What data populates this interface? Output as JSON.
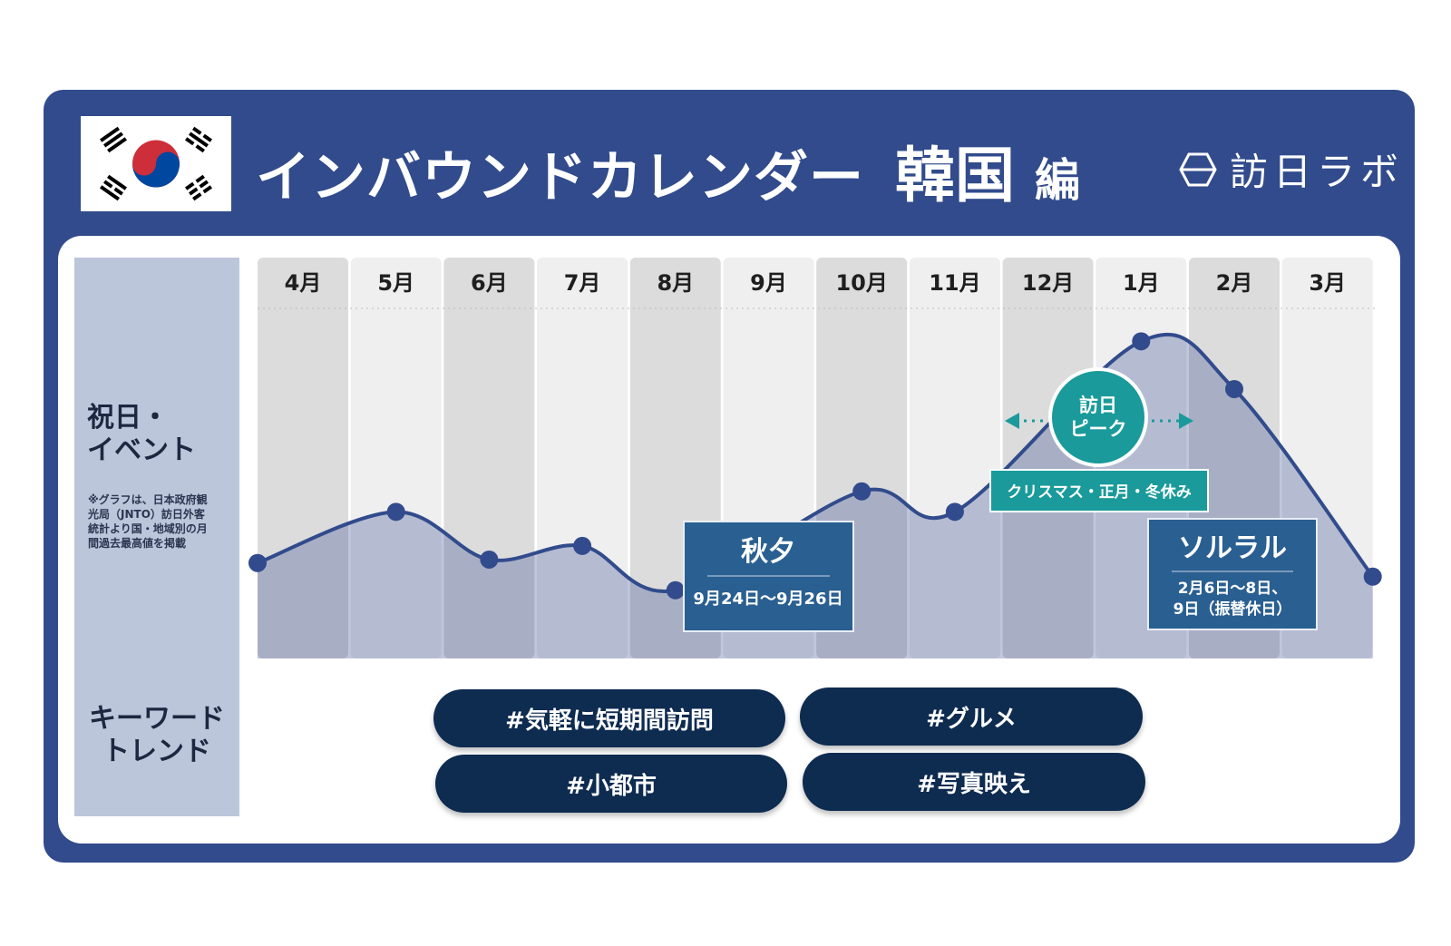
{
  "header": {
    "title_main": "インバウンドカレンダー",
    "title_country": "韓国",
    "title_suffix": "編",
    "brand": "訪日ラボ",
    "flag_icon": "south-korea-flag-icon",
    "colors": {
      "navy": "#314b8c",
      "dark": "#0e2b50",
      "teal": "#1a9a9a",
      "box": "#2a5f91"
    }
  },
  "sidebar": {
    "events_label_line1": "祝日・",
    "events_label_line2": "イベント",
    "note_lines": [
      "※グラフは、日本政府観",
      "光局（JNTO）訪日外客",
      "統計より国・地域別の月",
      "間過去最高値を掲載"
    ],
    "keywords_label_line1": "キーワード",
    "keywords_label_line2": "トレンド"
  },
  "chart_data": {
    "type": "area",
    "categories": [
      "4月",
      "5月",
      "6月",
      "7月",
      "8月",
      "9月",
      "10月",
      "11月",
      "12月",
      "1月",
      "2月",
      "3月"
    ],
    "values": [
      0.28,
      0.43,
      0.29,
      0.33,
      0.2,
      null,
      0.49,
      0.43,
      null,
      0.93,
      0.79,
      0.24
    ],
    "ylim": [
      0,
      1
    ],
    "annotations": [
      {
        "title": "秋夕",
        "date": "9月24日～9月26日"
      },
      {
        "title": "ソルラル",
        "date_line1": "2月6日～8日、",
        "date_line2": "9日（振替休日）"
      },
      {
        "label": "クリスマス・正月・冬休み"
      }
    ],
    "peak_badge": {
      "line1": "訪日",
      "line2": "ピーク"
    }
  },
  "keywords": [
    "#気軽に短期間訪問",
    "#グルメ",
    "#小都市",
    "#写真映え"
  ]
}
